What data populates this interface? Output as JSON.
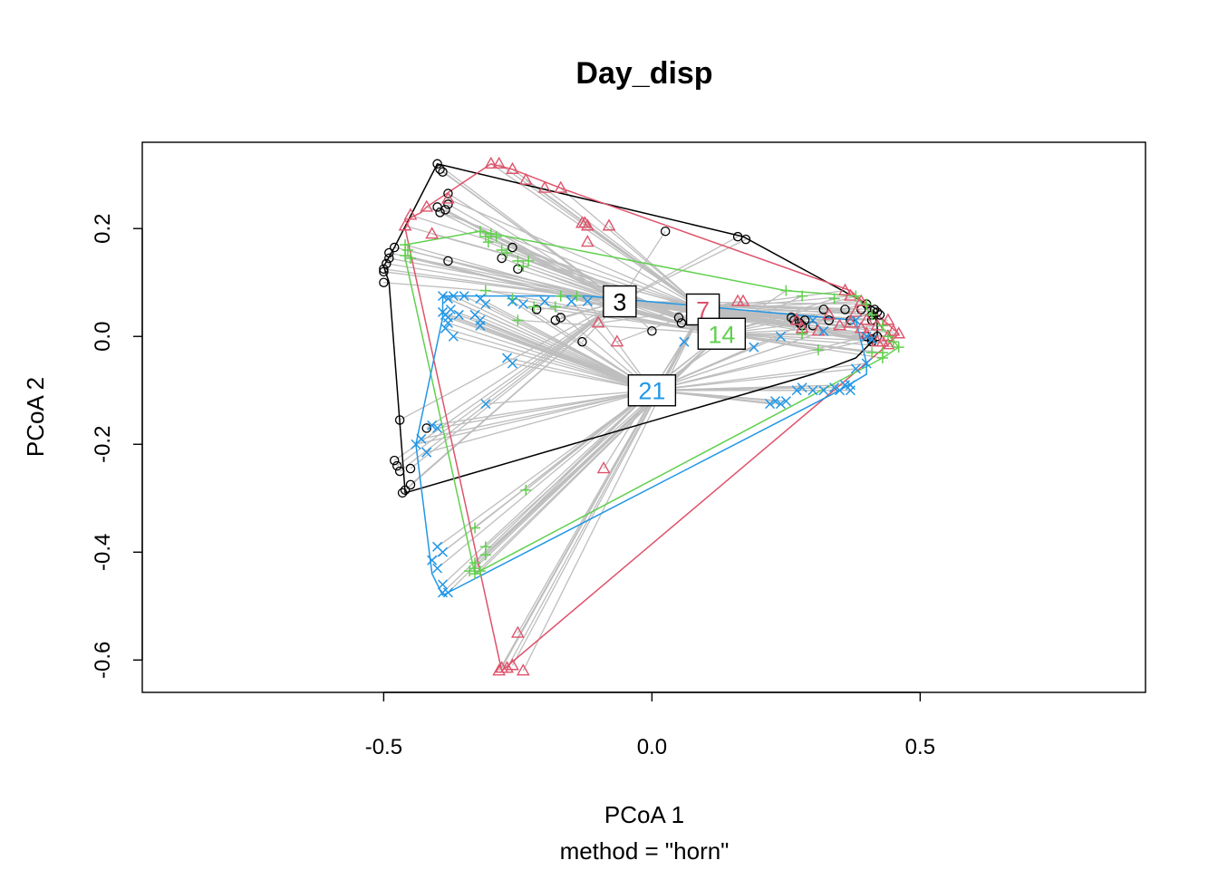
{
  "chart_data": {
    "type": "scatter",
    "title": "Day_disp",
    "xlabel": "PCoA 1",
    "sublabel": "method = \"horn\"",
    "ylabel": "PCoA 2",
    "xlim": [
      -0.95,
      0.92
    ],
    "ylim": [
      -0.66,
      0.36
    ],
    "xticks": [
      "-0.5",
      "0.0",
      "0.5"
    ],
    "xtick_values": [
      -0.5,
      0.0,
      0.5
    ],
    "yticks": [
      "-0.6",
      "-0.4",
      "-0.2",
      "0.0",
      "0.2"
    ],
    "ytick_values": [
      -0.6,
      -0.4,
      -0.2,
      0.0,
      0.2
    ],
    "spider_color": "#BEBEBE",
    "series": [
      {
        "name": "3",
        "color": "#000000",
        "marker": "circle",
        "centroid": [
          -0.06,
          0.065
        ],
        "hull": [
          [
            -0.4,
            0.32
          ],
          [
            0.17,
            0.185
          ],
          [
            0.42,
            0.05
          ],
          [
            0.42,
            0.0
          ],
          [
            0.38,
            -0.04
          ],
          [
            0.3,
            -0.07
          ],
          [
            -0.46,
            -0.29
          ],
          [
            -0.49,
            0.1
          ],
          [
            -0.5,
            0.13
          ],
          [
            -0.48,
            0.165
          ]
        ],
        "points": [
          [
            -0.4,
            0.32
          ],
          [
            -0.395,
            0.31
          ],
          [
            -0.39,
            0.305
          ],
          [
            -0.38,
            0.265
          ],
          [
            -0.38,
            0.245
          ],
          [
            -0.4,
            0.24
          ],
          [
            -0.395,
            0.23
          ],
          [
            -0.385,
            0.235
          ],
          [
            -0.48,
            0.165
          ],
          [
            -0.49,
            0.155
          ],
          [
            -0.49,
            0.145
          ],
          [
            -0.495,
            0.135
          ],
          [
            -0.5,
            0.125
          ],
          [
            -0.5,
            0.12
          ],
          [
            -0.5,
            0.1
          ],
          [
            -0.38,
            0.14
          ],
          [
            -0.28,
            0.145
          ],
          [
            -0.26,
            0.165
          ],
          [
            -0.25,
            0.125
          ],
          [
            -0.215,
            0.05
          ],
          [
            -0.18,
            0.03
          ],
          [
            -0.17,
            0.035
          ],
          [
            -0.13,
            -0.01
          ],
          [
            0.0,
            0.01
          ],
          [
            0.025,
            0.195
          ],
          [
            0.05,
            0.035
          ],
          [
            0.055,
            0.025
          ],
          [
            0.16,
            0.185
          ],
          [
            0.175,
            0.18
          ],
          [
            0.26,
            0.035
          ],
          [
            0.265,
            0.03
          ],
          [
            0.275,
            0.025
          ],
          [
            0.28,
            0.02
          ],
          [
            0.285,
            0.03
          ],
          [
            0.3,
            0.02
          ],
          [
            0.32,
            0.05
          ],
          [
            0.33,
            0.03
          ],
          [
            0.36,
            0.05
          ],
          [
            0.37,
            0.03
          ],
          [
            0.39,
            0.05
          ],
          [
            0.4,
            0.06
          ],
          [
            0.41,
            0.04
          ],
          [
            0.415,
            0.05
          ],
          [
            0.42,
            0.045
          ],
          [
            0.425,
            0.04
          ],
          [
            0.41,
            0.03
          ],
          [
            0.42,
            0.0
          ],
          [
            0.41,
            -0.005
          ],
          [
            0.4,
            0.0
          ],
          [
            0.41,
            -0.01
          ],
          [
            -0.47,
            -0.155
          ],
          [
            -0.42,
            -0.17
          ],
          [
            -0.48,
            -0.23
          ],
          [
            -0.475,
            -0.24
          ],
          [
            -0.47,
            -0.25
          ],
          [
            -0.45,
            -0.245
          ],
          [
            -0.45,
            -0.275
          ],
          [
            -0.46,
            -0.285
          ],
          [
            -0.465,
            -0.29
          ]
        ]
      },
      {
        "name": "7",
        "color": "#DF536B",
        "marker": "triangle",
        "centroid": [
          0.095,
          0.05
        ],
        "hull": [
          [
            -0.3,
            0.32
          ],
          [
            -0.26,
            0.31
          ],
          [
            -0.17,
            0.275
          ],
          [
            0.37,
            0.085
          ],
          [
            0.46,
            0.005
          ],
          [
            0.44,
            -0.015
          ],
          [
            -0.28,
            -0.62
          ],
          [
            -0.46,
            0.2
          ],
          [
            -0.45,
            0.22
          ],
          [
            -0.43,
            0.23
          ],
          [
            -0.42,
            0.24
          ]
        ],
        "points": [
          [
            -0.3,
            0.32
          ],
          [
            -0.285,
            0.32
          ],
          [
            -0.26,
            0.31
          ],
          [
            -0.235,
            0.29
          ],
          [
            -0.2,
            0.275
          ],
          [
            -0.17,
            0.275
          ],
          [
            -0.38,
            0.255
          ],
          [
            -0.42,
            0.24
          ],
          [
            -0.45,
            0.225
          ],
          [
            -0.46,
            0.205
          ],
          [
            -0.41,
            0.19
          ],
          [
            -0.13,
            0.21
          ],
          [
            -0.125,
            0.21
          ],
          [
            -0.12,
            0.205
          ],
          [
            -0.08,
            0.205
          ],
          [
            -0.12,
            0.175
          ],
          [
            -0.1,
            0.025
          ],
          [
            -0.065,
            -0.01
          ],
          [
            0.16,
            0.065
          ],
          [
            0.17,
            0.065
          ],
          [
            0.36,
            0.085
          ],
          [
            0.37,
            0.075
          ],
          [
            0.39,
            0.065
          ],
          [
            0.38,
            0.045
          ],
          [
            0.37,
            0.025
          ],
          [
            0.35,
            0.02
          ],
          [
            0.33,
            0.04
          ],
          [
            0.31,
            0.01
          ],
          [
            0.4,
            0.03
          ],
          [
            0.42,
            0.02
          ],
          [
            0.44,
            0.03
          ],
          [
            0.45,
            0.01
          ],
          [
            0.46,
            0.005
          ],
          [
            0.44,
            0.0
          ],
          [
            0.43,
            -0.01
          ],
          [
            0.44,
            -0.015
          ],
          [
            0.42,
            -0.01
          ],
          [
            0.4,
            0.005
          ],
          [
            0.39,
            0.015
          ],
          [
            0.27,
            0.03
          ],
          [
            0.28,
            0.015
          ],
          [
            -0.09,
            -0.245
          ],
          [
            -0.25,
            -0.55
          ],
          [
            -0.28,
            -0.615
          ],
          [
            -0.285,
            -0.62
          ],
          [
            -0.27,
            -0.615
          ],
          [
            -0.24,
            -0.62
          ],
          [
            -0.26,
            -0.61
          ]
        ]
      },
      {
        "name": "14",
        "color": "#61D04F",
        "marker": "plus",
        "centroid": [
          0.13,
          0.005
        ],
        "hull": [
          [
            -0.46,
            0.17
          ],
          [
            -0.32,
            0.195
          ],
          [
            0.25,
            0.085
          ],
          [
            0.38,
            0.075
          ],
          [
            0.46,
            -0.02
          ],
          [
            0.43,
            -0.04
          ],
          [
            -0.33,
            -0.44
          ],
          [
            -0.46,
            0.145
          ]
        ],
        "points": [
          [
            -0.46,
            0.17
          ],
          [
            -0.455,
            0.16
          ],
          [
            -0.46,
            0.15
          ],
          [
            -0.45,
            0.145
          ],
          [
            -0.32,
            0.195
          ],
          [
            -0.31,
            0.185
          ],
          [
            -0.305,
            0.175
          ],
          [
            -0.3,
            0.19
          ],
          [
            -0.29,
            0.185
          ],
          [
            -0.28,
            0.16
          ],
          [
            -0.27,
            0.155
          ],
          [
            -0.25,
            0.14
          ],
          [
            -0.24,
            0.13
          ],
          [
            -0.23,
            0.14
          ],
          [
            -0.31,
            0.085
          ],
          [
            -0.26,
            0.07
          ],
          [
            -0.22,
            0.055
          ],
          [
            -0.17,
            0.075
          ],
          [
            -0.14,
            0.075
          ],
          [
            -0.18,
            0.055
          ],
          [
            -0.25,
            0.03
          ],
          [
            0.25,
            0.085
          ],
          [
            0.28,
            0.075
          ],
          [
            0.34,
            0.07
          ],
          [
            0.38,
            0.075
          ],
          [
            0.4,
            0.06
          ],
          [
            0.41,
            0.04
          ],
          [
            0.43,
            0.02
          ],
          [
            0.44,
            0.0
          ],
          [
            0.45,
            -0.01
          ],
          [
            0.46,
            -0.02
          ],
          [
            0.43,
            -0.03
          ],
          [
            0.43,
            -0.04
          ],
          [
            0.41,
            -0.03
          ],
          [
            0.31,
            -0.025
          ],
          [
            0.28,
            0.005
          ],
          [
            -0.235,
            -0.285
          ],
          [
            -0.33,
            -0.355
          ],
          [
            -0.31,
            -0.39
          ],
          [
            -0.31,
            -0.405
          ],
          [
            -0.33,
            -0.42
          ],
          [
            -0.33,
            -0.43
          ],
          [
            -0.32,
            -0.435
          ],
          [
            -0.33,
            -0.44
          ],
          [
            -0.34,
            -0.435
          ]
        ]
      },
      {
        "name": "21",
        "color": "#2297E6",
        "marker": "x",
        "centroid": [
          0.0,
          -0.1
        ],
        "hull": [
          [
            -0.39,
            0.075
          ],
          [
            -0.12,
            0.075
          ],
          [
            0.38,
            0.03
          ],
          [
            0.4,
            -0.05
          ],
          [
            0.4,
            -0.07
          ],
          [
            0.35,
            -0.1
          ],
          [
            -0.39,
            -0.48
          ],
          [
            -0.41,
            -0.44
          ],
          [
            -0.44,
            -0.2
          ],
          [
            -0.39,
            0.035
          ]
        ],
        "points": [
          [
            -0.39,
            0.075
          ],
          [
            -0.38,
            0.07
          ],
          [
            -0.37,
            0.075
          ],
          [
            -0.35,
            0.075
          ],
          [
            -0.32,
            0.07
          ],
          [
            -0.31,
            0.06
          ],
          [
            -0.26,
            0.065
          ],
          [
            -0.24,
            0.06
          ],
          [
            -0.2,
            0.065
          ],
          [
            -0.15,
            0.065
          ],
          [
            -0.12,
            0.065
          ],
          [
            -0.39,
            0.045
          ],
          [
            -0.385,
            0.04
          ],
          [
            -0.38,
            0.035
          ],
          [
            -0.38,
            0.025
          ],
          [
            -0.385,
            0.015
          ],
          [
            -0.375,
            0.05
          ],
          [
            -0.36,
            0.04
          ],
          [
            -0.33,
            0.04
          ],
          [
            -0.32,
            0.03
          ],
          [
            -0.37,
            0.0
          ],
          [
            -0.32,
            0.02
          ],
          [
            -0.27,
            -0.04
          ],
          [
            -0.26,
            -0.05
          ],
          [
            -0.31,
            -0.125
          ],
          [
            0.06,
            -0.01
          ],
          [
            0.13,
            -0.01
          ],
          [
            0.19,
            -0.02
          ],
          [
            0.24,
            0.0
          ],
          [
            0.3,
            0.03
          ],
          [
            0.32,
            0.01
          ],
          [
            0.38,
            0.03
          ],
          [
            0.4,
            0.0
          ],
          [
            0.41,
            -0.005
          ],
          [
            0.4,
            -0.05
          ],
          [
            0.38,
            -0.06
          ],
          [
            0.37,
            -0.09
          ],
          [
            0.37,
            -0.1
          ],
          [
            0.36,
            -0.09
          ],
          [
            0.35,
            -0.1
          ],
          [
            0.34,
            -0.095
          ],
          [
            0.32,
            -0.1
          ],
          [
            0.3,
            -0.1
          ],
          [
            0.28,
            -0.095
          ],
          [
            0.27,
            -0.1
          ],
          [
            0.23,
            -0.12
          ],
          [
            0.24,
            -0.125
          ],
          [
            0.25,
            -0.12
          ],
          [
            0.22,
            -0.125
          ],
          [
            -0.41,
            -0.165
          ],
          [
            -0.4,
            -0.17
          ],
          [
            -0.43,
            -0.19
          ],
          [
            -0.44,
            -0.2
          ],
          [
            -0.42,
            -0.215
          ],
          [
            -0.4,
            -0.39
          ],
          [
            -0.39,
            -0.4
          ],
          [
            -0.41,
            -0.415
          ],
          [
            -0.4,
            -0.43
          ],
          [
            -0.39,
            -0.46
          ],
          [
            -0.39,
            -0.475
          ],
          [
            -0.38,
            -0.475
          ]
        ]
      }
    ]
  }
}
